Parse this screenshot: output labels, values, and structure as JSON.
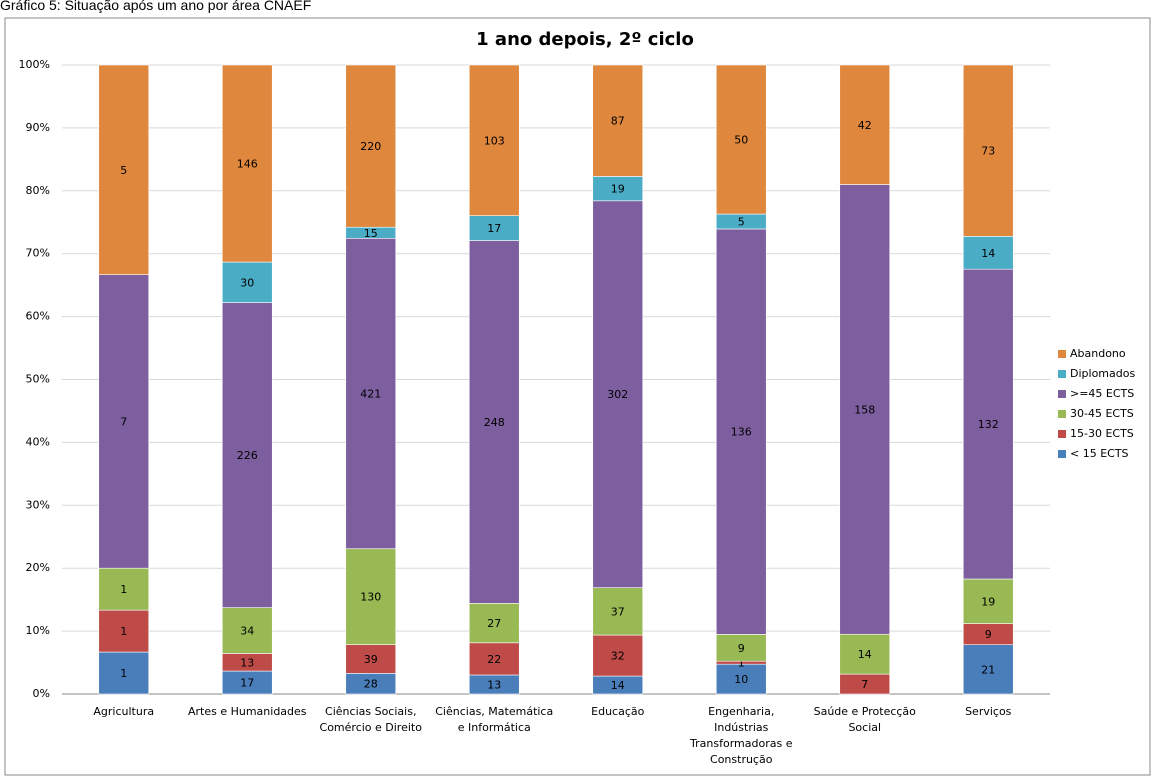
{
  "caption": "Gráfico 5: Situação após um ano por área CNAEF",
  "chart_data": {
    "type": "bar",
    "stacking": "percent",
    "title": "1 ano depois, 2º ciclo",
    "categories": [
      "Agricultura",
      "Artes e Humanidades",
      "Ciências Sociais, Comércio e Direito",
      "Ciências, Matemática e Informática",
      "Educação",
      "Engenharia, Indústrias Transformadoras e Construção",
      "Saúde e Protecção Social",
      "Serviços"
    ],
    "series": [
      {
        "name": "< 15 ECTS",
        "color": "#4a7ebb",
        "values": [
          1,
          17,
          28,
          13,
          14,
          10,
          null,
          21
        ]
      },
      {
        "name": "15-30 ECTS",
        "color": "#be4b48",
        "values": [
          1,
          13,
          39,
          22,
          32,
          1,
          7,
          9
        ]
      },
      {
        "name": "30-45 ECTS",
        "color": "#98b954",
        "values": [
          1,
          34,
          130,
          27,
          37,
          9,
          14,
          19
        ]
      },
      {
        "name": ">=45 ECTS",
        "color": "#7d5fa0",
        "values": [
          7,
          226,
          421,
          248,
          302,
          136,
          158,
          132
        ]
      },
      {
        "name": "Diplomados",
        "color": "#4bacc6",
        "values": [
          null,
          30,
          15,
          17,
          19,
          5,
          null,
          14
        ]
      },
      {
        "name": "Abandono",
        "color": "#e0873e",
        "values": [
          5,
          146,
          220,
          103,
          87,
          50,
          42,
          73
        ]
      }
    ],
    "ylim": [
      0,
      100
    ],
    "yticks": [
      {
        "value": 0,
        "label": "0%"
      },
      {
        "value": 10,
        "label": "10%"
      },
      {
        "value": 20,
        "label": "20%"
      },
      {
        "value": 30,
        "label": "30%"
      },
      {
        "value": 40,
        "label": "40%"
      },
      {
        "value": 50,
        "label": "50%"
      },
      {
        "value": 60,
        "label": "60%"
      },
      {
        "value": 70,
        "label": "70%"
      },
      {
        "value": 80,
        "label": "80%"
      },
      {
        "value": 90,
        "label": "90%"
      },
      {
        "value": 100,
        "label": "100%"
      }
    ],
    "grid": true,
    "legend": "right"
  }
}
